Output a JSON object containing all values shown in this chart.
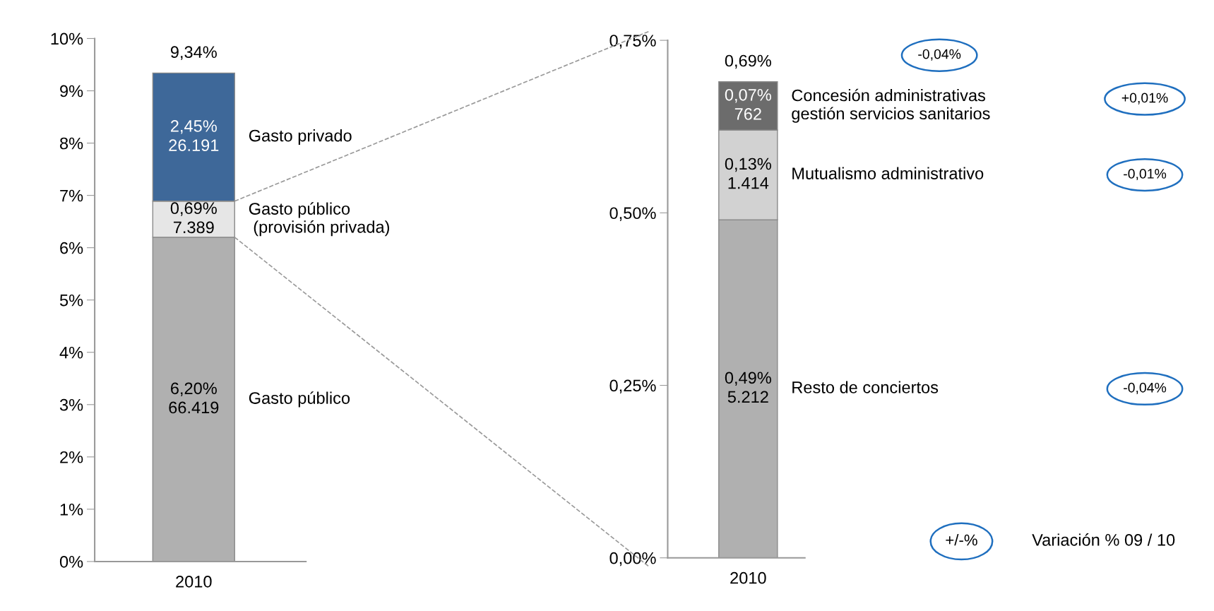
{
  "chart_data": [
    {
      "type": "bar",
      "stacked": true,
      "categories": [
        "2010"
      ],
      "series": [
        {
          "name": "Gasto público",
          "color": "#b0b0b0",
          "values": [
            6.2
          ],
          "value_labels": [
            "6,20%\n66.419"
          ]
        },
        {
          "name": "Gasto público\n (provisión privada)",
          "color": "#e6e6e6",
          "values": [
            0.69
          ],
          "value_labels": [
            "0,69%\n7.389"
          ]
        },
        {
          "name": "Gasto privado",
          "color": "#3e6899",
          "values": [
            2.45
          ],
          "value_labels": [
            "2,45%\n26.191"
          ]
        }
      ],
      "totals": [
        "9,34%"
      ],
      "ylim": [
        0,
        10
      ],
      "yticks": [
        {
          "value": 0,
          "label": "0%"
        },
        {
          "value": 1,
          "label": "1%"
        },
        {
          "value": 2,
          "label": "2%"
        },
        {
          "value": 3,
          "label": "3%"
        },
        {
          "value": 4,
          "label": "4%"
        },
        {
          "value": 5,
          "label": "5%"
        },
        {
          "value": 6,
          "label": "6%"
        },
        {
          "value": 7,
          "label": "7%"
        },
        {
          "value": 8,
          "label": "8%"
        },
        {
          "value": 9,
          "label": "9%"
        },
        {
          "value": 10,
          "label": "10%"
        }
      ],
      "grid": false,
      "legend": false
    },
    {
      "type": "bar",
      "stacked": true,
      "categories": [
        "2010"
      ],
      "series": [
        {
          "name": "Resto de conciertos",
          "color": "#b0b0b0",
          "values": [
            0.49
          ],
          "value_labels": [
            "0,49%\n5.212"
          ]
        },
        {
          "name": "Mutualismo administrativo",
          "color": "#d2d2d2",
          "values": [
            0.13
          ],
          "value_labels": [
            "0,13%\n1.414"
          ]
        },
        {
          "name": "Concesión administrativas\ngestión servicios sanitarios",
          "color": "#6c6c6c",
          "values": [
            0.07
          ],
          "value_labels": [
            "0,07%\n762"
          ]
        }
      ],
      "totals": [
        "0,69%"
      ],
      "ylim": [
        0,
        0.75
      ],
      "yticks": [
        {
          "value": 0,
          "label": "0,00%"
        },
        {
          "value": 0.25,
          "label": "0,25%"
        },
        {
          "value": 0.5,
          "label": "0,50%"
        },
        {
          "value": 0.75,
          "label": "0,75%"
        }
      ],
      "annotations": [
        "-0,04%",
        "+0,01%",
        "-0,01%",
        "-0,04%",
        "+/-%",
        "Variación % 09 / 10"
      ],
      "grid": false,
      "legend": false
    }
  ]
}
